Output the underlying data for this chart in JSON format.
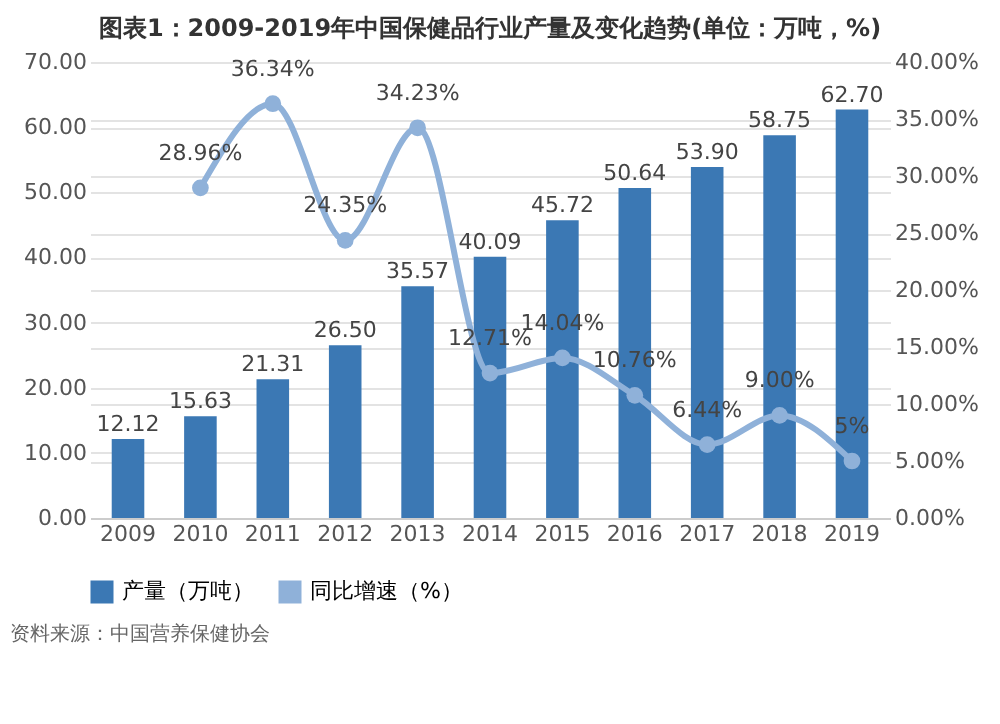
{
  "chart_data": {
    "type": "bar",
    "title": "图表1：2009-2019年中国保健品行业产量及变化趋势(单位：万吨，%)",
    "categories": [
      "2009",
      "2010",
      "2011",
      "2012",
      "2013",
      "2014",
      "2015",
      "2016",
      "2017",
      "2018",
      "2019"
    ],
    "series": [
      {
        "name": "产量（万吨）",
        "color": "#3b78b4",
        "values": [
          12.12,
          15.63,
          21.31,
          26.5,
          35.57,
          40.09,
          45.72,
          50.64,
          53.9,
          58.75,
          62.7
        ],
        "value_labels": [
          "12.12",
          "15.63",
          "21.31",
          "26.50",
          "35.57",
          "40.09",
          "45.72",
          "50.64",
          "53.90",
          "58.75",
          "62.70"
        ]
      },
      {
        "name": "同比增速（%）",
        "type": "line",
        "axis": "y2",
        "marker": "circle",
        "color": "#8fb1d9",
        "values": [
          null,
          28.96,
          36.34,
          24.35,
          34.23,
          12.71,
          14.04,
          10.76,
          6.44,
          9.0,
          5
        ],
        "value_labels": [
          null,
          "28.96%",
          "36.34%",
          "24.35%",
          "34.23%",
          "12.71%",
          "14.04%",
          "10.76%",
          "6.44%",
          "9.00%",
          "5%"
        ]
      }
    ],
    "ylim": [
      0,
      70
    ],
    "yticks": [
      {
        "value": 0,
        "label": "0.00"
      },
      {
        "value": 10,
        "label": "10.00"
      },
      {
        "value": 20,
        "label": "20.00"
      },
      {
        "value": 30,
        "label": "30.00"
      },
      {
        "value": 40,
        "label": "40.00"
      },
      {
        "value": 50,
        "label": "50.00"
      },
      {
        "value": 60,
        "label": "60.00"
      },
      {
        "value": 70,
        "label": "70.00"
      }
    ],
    "y2lim": [
      0,
      40
    ],
    "y2ticks": [
      {
        "value": 0,
        "label": "0.00%"
      },
      {
        "value": 5,
        "label": "5.00%"
      },
      {
        "value": 10,
        "label": "10.00%"
      },
      {
        "value": 15,
        "label": "15.00%"
      },
      {
        "value": 20,
        "label": "20.00%"
      },
      {
        "value": 25,
        "label": "25.00%"
      },
      {
        "value": 30,
        "label": "30.00%"
      },
      {
        "value": 35,
        "label": "35.00%"
      },
      {
        "value": 40,
        "label": "40.00%"
      }
    ],
    "grid": "y",
    "legend": "bottom",
    "annotations": [
      "资料来源：中国营养保健协会"
    ]
  }
}
